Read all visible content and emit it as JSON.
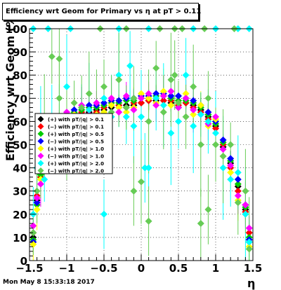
{
  "title": "Efficiency wrt Geom for Primary vs  η at pT > 0.11",
  "footer": "Mon May  8 15:33:18 2017",
  "chart_data": {
    "type": "scatter",
    "xlabel": "η",
    "ylabel": "Efficiency wrt Geom (%)",
    "xlim": [
      -1.5,
      1.5
    ],
    "ylim": [
      0,
      100
    ],
    "xticks": [
      "−1.5",
      "−1",
      "−0.5",
      "0",
      "0.5",
      "1",
      "1.5"
    ],
    "yticks": [
      "0",
      "10",
      "20",
      "30",
      "40",
      "50",
      "60",
      "70",
      "80",
      "90",
      "100"
    ],
    "grid": true,
    "legend_position": "left-middle",
    "series": [
      {
        "name": "(+) with pT/|q| > 0.1",
        "color": "#000000",
        "errors": "small",
        "points": [
          [
            -1.45,
            10
          ],
          [
            -1.4,
            26
          ],
          [
            -1.35,
            38
          ],
          [
            -1.3,
            45
          ],
          [
            -1.2,
            52
          ],
          [
            -1.1,
            58
          ],
          [
            -1.0,
            60
          ],
          [
            -0.9,
            62
          ],
          [
            -0.8,
            63
          ],
          [
            -0.7,
            64
          ],
          [
            -0.6,
            65
          ],
          [
            -0.5,
            65
          ],
          [
            -0.4,
            66
          ],
          [
            -0.3,
            66
          ],
          [
            -0.2,
            67
          ],
          [
            -0.1,
            67
          ],
          [
            0.0,
            68
          ],
          [
            0.1,
            69
          ],
          [
            0.2,
            69
          ],
          [
            0.3,
            69
          ],
          [
            0.4,
            68
          ],
          [
            0.5,
            66
          ],
          [
            0.6,
            68
          ],
          [
            0.7,
            67
          ],
          [
            0.8,
            65
          ],
          [
            0.9,
            62
          ],
          [
            1.0,
            58
          ],
          [
            1.1,
            49
          ],
          [
            1.2,
            42
          ],
          [
            1.3,
            32
          ],
          [
            1.4,
            22
          ],
          [
            1.45,
            8
          ]
        ]
      },
      {
        "name": "(−) with pT/|q| > 0.1",
        "color": "#ff0000",
        "errors": "small",
        "points": [
          [
            -1.45,
            12
          ],
          [
            -1.4,
            28
          ],
          [
            -1.35,
            36
          ],
          [
            -1.3,
            47
          ],
          [
            -1.2,
            53
          ],
          [
            -1.1,
            57
          ],
          [
            -1.0,
            61
          ],
          [
            -0.9,
            63
          ],
          [
            -0.8,
            64
          ],
          [
            -0.7,
            65
          ],
          [
            -0.6,
            64
          ],
          [
            -0.5,
            66
          ],
          [
            -0.4,
            67
          ],
          [
            -0.3,
            67
          ],
          [
            -0.2,
            66
          ],
          [
            -0.1,
            68
          ],
          [
            0.0,
            68
          ],
          [
            0.1,
            69
          ],
          [
            0.2,
            70
          ],
          [
            0.3,
            69
          ],
          [
            0.4,
            69
          ],
          [
            0.5,
            67
          ],
          [
            0.6,
            68
          ],
          [
            0.7,
            66
          ],
          [
            0.8,
            64
          ],
          [
            0.9,
            61
          ],
          [
            1.0,
            57
          ],
          [
            1.1,
            50
          ],
          [
            1.2,
            40
          ],
          [
            1.3,
            30
          ],
          [
            1.4,
            21
          ],
          [
            1.45,
            12
          ]
        ]
      },
      {
        "name": "(+) with pT/|q| > 0.5",
        "color": "#00cc00",
        "errors": "small",
        "points": [
          [
            -1.45,
            9
          ],
          [
            -1.4,
            24
          ],
          [
            -1.35,
            37
          ],
          [
            -1.3,
            46
          ],
          [
            -1.2,
            55
          ],
          [
            -1.1,
            59
          ],
          [
            -1.0,
            62
          ],
          [
            -0.9,
            64
          ],
          [
            -0.8,
            65
          ],
          [
            -0.7,
            66
          ],
          [
            -0.6,
            66
          ],
          [
            -0.5,
            67
          ],
          [
            -0.4,
            68
          ],
          [
            -0.3,
            68
          ],
          [
            -0.2,
            69
          ],
          [
            -0.1,
            69
          ],
          [
            0.0,
            70
          ],
          [
            0.1,
            70
          ],
          [
            0.2,
            71
          ],
          [
            0.3,
            71
          ],
          [
            0.4,
            70
          ],
          [
            0.5,
            69
          ],
          [
            0.6,
            69
          ],
          [
            0.7,
            68
          ],
          [
            0.8,
            66
          ],
          [
            0.9,
            63
          ],
          [
            1.0,
            59
          ],
          [
            1.1,
            51
          ],
          [
            1.2,
            43
          ],
          [
            1.3,
            33
          ],
          [
            1.4,
            23
          ],
          [
            1.45,
            10
          ]
        ]
      },
      {
        "name": "(−) with pT/|q| > 0.5",
        "color": "#0000ff",
        "errors": "small",
        "points": [
          [
            -1.45,
            8
          ],
          [
            -1.4,
            25
          ],
          [
            -1.35,
            39
          ],
          [
            -1.3,
            48
          ],
          [
            -1.2,
            55
          ],
          [
            -1.1,
            60
          ],
          [
            -1.0,
            63
          ],
          [
            -0.9,
            65
          ],
          [
            -0.8,
            66
          ],
          [
            -0.7,
            67
          ],
          [
            -0.6,
            67
          ],
          [
            -0.5,
            68
          ],
          [
            -0.4,
            69
          ],
          [
            -0.3,
            69
          ],
          [
            -0.2,
            70
          ],
          [
            -0.1,
            70
          ],
          [
            0.0,
            71
          ],
          [
            0.1,
            71
          ],
          [
            0.2,
            72
          ],
          [
            0.3,
            72
          ],
          [
            0.4,
            71
          ],
          [
            0.5,
            71
          ],
          [
            0.6,
            70
          ],
          [
            0.7,
            69
          ],
          [
            0.8,
            67
          ],
          [
            0.9,
            64
          ],
          [
            1.0,
            60
          ],
          [
            1.1,
            52
          ],
          [
            1.2,
            44
          ],
          [
            1.3,
            35
          ],
          [
            1.4,
            24
          ],
          [
            1.45,
            9
          ]
        ]
      },
      {
        "name": "(+) with pT/|q| > 1.0",
        "color": "#ffff00",
        "errors": "medium",
        "points": [
          [
            -1.45,
            7
          ],
          [
            -1.4,
            22
          ],
          [
            -1.35,
            35
          ],
          [
            -1.3,
            44
          ],
          [
            -1.2,
            54
          ],
          [
            -1.1,
            58
          ],
          [
            -1.0,
            61
          ],
          [
            -0.9,
            63
          ],
          [
            -0.8,
            62
          ],
          [
            -0.7,
            65
          ],
          [
            -0.6,
            63
          ],
          [
            -0.5,
            64
          ],
          [
            -0.4,
            67
          ],
          [
            -0.3,
            66
          ],
          [
            -0.2,
            64
          ],
          [
            -0.1,
            66
          ],
          [
            0.0,
            72
          ],
          [
            0.1,
            70
          ],
          [
            0.2,
            68
          ],
          [
            0.3,
            73
          ],
          [
            0.4,
            67
          ],
          [
            0.5,
            68
          ],
          [
            0.6,
            72
          ],
          [
            0.7,
            63
          ],
          [
            0.8,
            67
          ],
          [
            0.9,
            58
          ],
          [
            1.0,
            61
          ],
          [
            1.1,
            45
          ],
          [
            1.2,
            38
          ],
          [
            1.3,
            26
          ],
          [
            1.4,
            20
          ],
          [
            1.45,
            6
          ]
        ]
      },
      {
        "name": "(−) with pT/|q| > 1.0",
        "color": "#ff00ff",
        "errors": "medium",
        "points": [
          [
            -1.45,
            15
          ],
          [
            -1.4,
            27
          ],
          [
            -1.35,
            33
          ],
          [
            -1.3,
            50
          ],
          [
            -1.2,
            56
          ],
          [
            -1.1,
            56
          ],
          [
            -1.0,
            64
          ],
          [
            -0.9,
            61
          ],
          [
            -0.8,
            67
          ],
          [
            -0.7,
            63
          ],
          [
            -0.6,
            68
          ],
          [
            -0.5,
            62
          ],
          [
            -0.4,
            70
          ],
          [
            -0.3,
            64
          ],
          [
            -0.2,
            71
          ],
          [
            -0.1,
            65
          ],
          [
            0.0,
            70
          ],
          [
            0.1,
            72
          ],
          [
            0.2,
            67
          ],
          [
            0.3,
            71
          ],
          [
            0.4,
            73
          ],
          [
            0.5,
            66
          ],
          [
            0.6,
            70
          ],
          [
            0.7,
            65
          ],
          [
            0.8,
            63
          ],
          [
            0.9,
            59
          ],
          [
            1.0,
            62
          ],
          [
            1.1,
            48
          ],
          [
            1.2,
            41
          ],
          [
            1.3,
            28
          ],
          [
            1.4,
            24
          ],
          [
            1.45,
            14
          ]
        ]
      },
      {
        "name": "(+) with pT/|q| > 2.0",
        "color": "#00ffff",
        "errors": "large",
        "points": [
          [
            -1.45,
            20
          ],
          [
            -1.4,
            40
          ],
          [
            -1.35,
            55
          ],
          [
            -1.3,
            35
          ],
          [
            -1.2,
            62
          ],
          [
            -1.1,
            58
          ],
          [
            -1.0,
            75
          ],
          [
            -0.9,
            50
          ],
          [
            -0.8,
            60
          ],
          [
            -0.7,
            65
          ],
          [
            -0.6,
            55
          ],
          [
            -0.5,
            70
          ],
          [
            -0.4,
            62
          ],
          [
            -0.3,
            80
          ],
          [
            -0.2,
            62
          ],
          [
            -0.1,
            58
          ],
          [
            0.0,
            62
          ],
          [
            0.1,
            40
          ],
          [
            0.2,
            70
          ],
          [
            0.3,
            67
          ],
          [
            0.4,
            55
          ],
          [
            0.5,
            60
          ],
          [
            0.6,
            80
          ],
          [
            0.7,
            58
          ],
          [
            0.8,
            63
          ],
          [
            0.9,
            60
          ],
          [
            1.0,
            55
          ],
          [
            1.1,
            40
          ],
          [
            1.2,
            35
          ],
          [
            1.3,
            38
          ],
          [
            1.4,
            20
          ],
          [
            1.45,
            8
          ]
        ]
      },
      {
        "name": "(−) with pT/|q| > 2.0",
        "color": "#66cc55",
        "errors": "large",
        "points": [
          [
            -1.45,
            12
          ],
          [
            -1.4,
            30
          ],
          [
            -1.35,
            45
          ],
          [
            -1.3,
            58
          ],
          [
            -1.2,
            88
          ],
          [
            -1.1,
            70
          ],
          [
            -1.0,
            55
          ],
          [
            -0.9,
            68
          ],
          [
            -0.8,
            66
          ],
          [
            -0.7,
            72
          ],
          [
            -0.6,
            60
          ],
          [
            -0.5,
            75
          ],
          [
            -0.4,
            64
          ],
          [
            -0.3,
            78
          ],
          [
            -0.2,
            66
          ],
          [
            -0.1,
            70
          ],
          [
            0.0,
            34
          ],
          [
            0.1,
            60
          ],
          [
            0.2,
            83
          ],
          [
            0.3,
            64
          ],
          [
            0.4,
            78
          ],
          [
            0.5,
            68
          ],
          [
            0.6,
            62
          ],
          [
            0.7,
            75
          ],
          [
            0.8,
            50
          ],
          [
            0.9,
            70
          ],
          [
            1.0,
            50
          ],
          [
            1.1,
            45
          ],
          [
            1.2,
            50
          ],
          [
            1.3,
            25
          ],
          [
            1.4,
            30
          ],
          [
            1.45,
            5
          ]
        ]
      }
    ],
    "top_markers": {
      "y": 100,
      "cyan_x": [
        -1.45,
        -1.25,
        -0.95,
        -0.3,
        0.1,
        0.7,
        1.0,
        1.3,
        1.45
      ],
      "green_x": [
        -0.55,
        -0.2,
        0.25,
        0.45,
        0.55,
        0.85,
        1.25
      ]
    },
    "outliers": {
      "green": [
        [
          -1.1,
          87
        ],
        [
          0.45,
          80
        ],
        [
          -0.7,
          53
        ],
        [
          -0.1,
          30
        ],
        [
          0.1,
          17
        ],
        [
          0.8,
          16
        ],
        [
          0.9,
          22
        ]
      ],
      "cyan": [
        [
          0.05,
          40
        ],
        [
          -0.15,
          84
        ],
        [
          -0.5,
          20
        ]
      ]
    }
  }
}
